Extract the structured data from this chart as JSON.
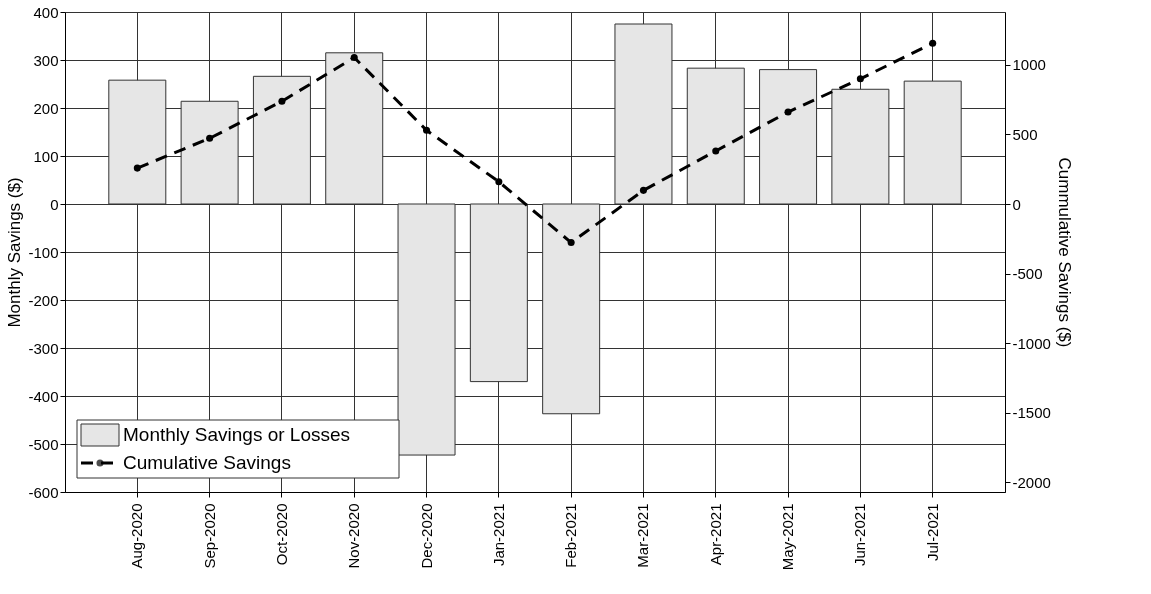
{
  "chart_data": {
    "type": "bar",
    "categories": [
      "Aug-2020",
      "Sep-2020",
      "Oct-2020",
      "Nov-2020",
      "Dec-2020",
      "Jan-2021",
      "Feb-2021",
      "Mar-2021",
      "Apr-2021",
      "May-2021",
      "Jun-2021",
      "Jul-2021"
    ],
    "ylabel": "Monthly Savings ($)",
    "y2label": "Cummulative Savings ($)",
    "ylim": [
      -600,
      400
    ],
    "yticks": [
      -600,
      -500,
      -400,
      -300,
      -200,
      -100,
      0,
      100,
      200,
      300,
      400
    ],
    "y2lim": [
      -2070,
      1380
    ],
    "y2ticks": [
      -2000,
      -1500,
      -1000,
      -500,
      0,
      500,
      1000
    ],
    "series": [
      {
        "name": "Monthly Savings or Losses",
        "color": "#e6e6e6",
        "values": [
          258,
          214,
          266,
          315,
          -523,
          -370,
          -437,
          375,
          283,
          280,
          239,
          256
        ]
      },
      {
        "name": "Cumulative Savings",
        "type": "line",
        "axis": "y2",
        "color": "#000000",
        "line_style": "dashed",
        "marker": "circle",
        "values": [
          258,
          472,
          738,
          1053,
          530,
          160,
          -277,
          98,
          381,
          661,
          900,
          1156
        ]
      }
    ],
    "grid": true,
    "legend": "bottom left"
  }
}
